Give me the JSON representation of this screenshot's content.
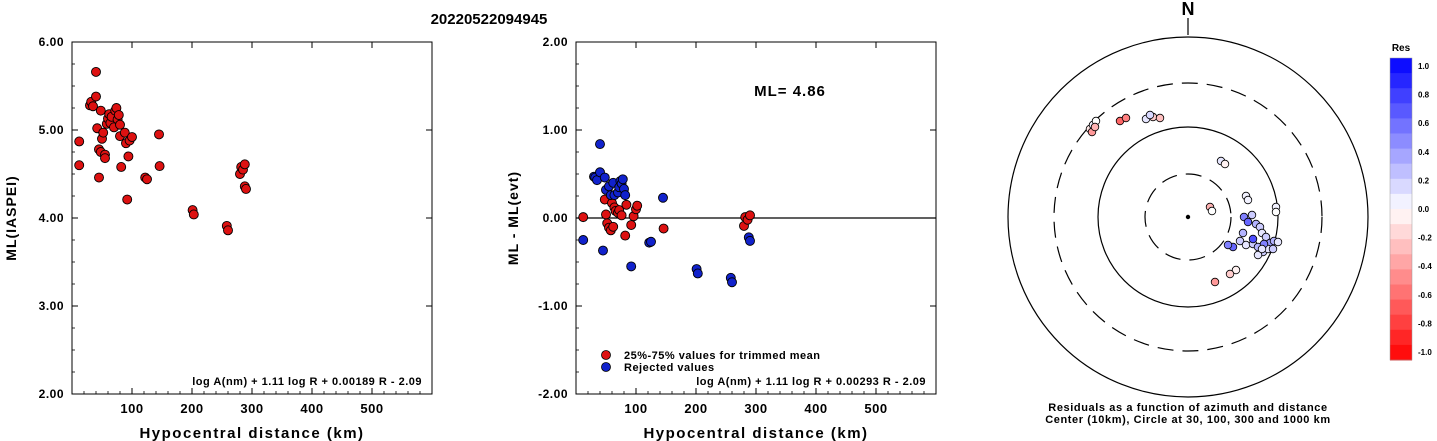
{
  "title": "20220522094945",
  "chart_data": [
    {
      "type": "scatter",
      "ylabel": "ML(IASPEI)",
      "xlabel": "Hypocentral distance (km)",
      "xlim": [
        0,
        600
      ],
      "ylim": [
        2.0,
        6.0
      ],
      "xticks": [
        "100",
        "200",
        "300",
        "400",
        "500"
      ],
      "yticks": [
        "2.00",
        "3.00",
        "4.00",
        "5.00",
        "6.00"
      ],
      "formula": "log A(nm) + 1.11 log R + 0.00189 R - 2.09",
      "color": "#dd1111",
      "points": [
        [
          12,
          4.87
        ],
        [
          12,
          4.6
        ],
        [
          30,
          5.28
        ],
        [
          32,
          5.32
        ],
        [
          35,
          5.27
        ],
        [
          40,
          5.66
        ],
        [
          40,
          5.38
        ],
        [
          42,
          5.02
        ],
        [
          45,
          4.78
        ],
        [
          45,
          4.46
        ],
        [
          48,
          4.75
        ],
        [
          48,
          5.22
        ],
        [
          50,
          4.9
        ],
        [
          52,
          4.97
        ],
        [
          55,
          4.72
        ],
        [
          55,
          4.68
        ],
        [
          58,
          5.07
        ],
        [
          60,
          5.13
        ],
        [
          62,
          5.18
        ],
        [
          64,
          5.08
        ],
        [
          66,
          5.15
        ],
        [
          70,
          5.03
        ],
        [
          72,
          5.22
        ],
        [
          74,
          5.25
        ],
        [
          76,
          5.12
        ],
        [
          78,
          5.17
        ],
        [
          80,
          5.06
        ],
        [
          80,
          4.93
        ],
        [
          82,
          4.58
        ],
        [
          88,
          4.97
        ],
        [
          90,
          4.85
        ],
        [
          92,
          4.21
        ],
        [
          94,
          4.7
        ],
        [
          96,
          4.88
        ],
        [
          100,
          4.92
        ],
        [
          122,
          4.46
        ],
        [
          125,
          4.44
        ],
        [
          145,
          4.95
        ],
        [
          146,
          4.59
        ],
        [
          201,
          4.09
        ],
        [
          203,
          4.04
        ],
        [
          258,
          3.91
        ],
        [
          260,
          3.86
        ],
        [
          280,
          4.5
        ],
        [
          282,
          4.58
        ],
        [
          285,
          4.55
        ],
        [
          288,
          4.61
        ],
        [
          288,
          4.36
        ],
        [
          290,
          4.33
        ]
      ]
    },
    {
      "type": "scatter",
      "ylabel": "ML - ML(evt)",
      "xlabel": "Hypocentral distance (km)",
      "xlim": [
        0,
        600
      ],
      "ylim": [
        -2.0,
        2.0
      ],
      "xticks": [
        "100",
        "200",
        "300",
        "400",
        "500"
      ],
      "yticks": [
        "-2.00",
        "-1.00",
        "0.00",
        "1.00",
        "2.00"
      ],
      "annotation": "ML= 4.86",
      "formula": "log A(nm) + 1.11 log R + 0.00293 R - 2.09",
      "legend": [
        {
          "label": "25%-75% values for trimmed mean",
          "color": "#dd1111"
        },
        {
          "label": "Rejected values",
          "color": "#1122cc"
        }
      ],
      "series": [
        {
          "name": "25%-75% values for trimmed mean",
          "color": "#dd1111",
          "points": [
            [
              12,
              0.01
            ],
            [
              48,
              0.21
            ],
            [
              50,
              0.04
            ],
            [
              52,
              -0.06
            ],
            [
              55,
              -0.11
            ],
            [
              58,
              -0.14
            ],
            [
              60,
              0.17
            ],
            [
              62,
              -0.1
            ],
            [
              64,
              0.12
            ],
            [
              66,
              0.08
            ],
            [
              70,
              0.06
            ],
            [
              72,
              0.09
            ],
            [
              76,
              0.03
            ],
            [
              82,
              -0.2
            ],
            [
              84,
              0.15
            ],
            [
              92,
              -0.08
            ],
            [
              96,
              0.02
            ],
            [
              100,
              0.1
            ],
            [
              102,
              0.14
            ],
            [
              146,
              -0.12
            ],
            [
              280,
              -0.09
            ],
            [
              282,
              0.01
            ],
            [
              286,
              -0.02
            ],
            [
              290,
              0.03
            ]
          ]
        },
        {
          "name": "Rejected values",
          "color": "#1122cc",
          "points": [
            [
              12,
              -0.25
            ],
            [
              30,
              0.47
            ],
            [
              32,
              0.46
            ],
            [
              35,
              0.43
            ],
            [
              40,
              0.84
            ],
            [
              40,
              0.52
            ],
            [
              45,
              -0.37
            ],
            [
              48,
              0.46
            ],
            [
              50,
              0.32
            ],
            [
              55,
              0.36
            ],
            [
              58,
              0.26
            ],
            [
              62,
              0.4
            ],
            [
              64,
              0.26
            ],
            [
              70,
              0.29
            ],
            [
              72,
              0.35
            ],
            [
              74,
              0.42
            ],
            [
              76,
              0.39
            ],
            [
              78,
              0.44
            ],
            [
              80,
              0.33
            ],
            [
              82,
              0.26
            ],
            [
              92,
              -0.55
            ],
            [
              122,
              -0.28
            ],
            [
              125,
              -0.27
            ],
            [
              145,
              0.23
            ],
            [
              201,
              -0.58
            ],
            [
              203,
              -0.63
            ],
            [
              258,
              -0.68
            ],
            [
              260,
              -0.73
            ],
            [
              288,
              -0.22
            ],
            [
              290,
              -0.26
            ]
          ]
        }
      ]
    },
    {
      "type": "polar-scatter",
      "north_label": "N",
      "caption_line1": "Residuals as a function of azimuth and distance",
      "caption_line2": "Center (10km), Circle at 30, 100, 300 and 1000 km",
      "colorbar_title": "Res",
      "colorbar_ticks": [
        "1.0",
        "0.8",
        "0.6",
        "0.4",
        "0.2",
        "0.0",
        "-0.2",
        "-0.4",
        "-0.6",
        "-0.8",
        "-1.0"
      ],
      "colorbar_range": [
        -1.0,
        1.0
      ],
      "points": [
        [
          -98,
          -88,
          -0.1
        ],
        [
          -96,
          -85,
          -0.4
        ],
        [
          -95,
          -92,
          0.05
        ],
        [
          -92,
          -96,
          0.0
        ],
        [
          -93,
          -90,
          -0.3
        ],
        [
          -68,
          -96,
          -0.6
        ],
        [
          -62,
          -99,
          -0.5
        ],
        [
          -42,
          -98,
          0.1
        ],
        [
          -35,
          -100,
          -0.2
        ],
        [
          -28,
          -99,
          -0.25
        ],
        [
          -38,
          -102,
          0.15
        ],
        [
          33,
          -56,
          0.1
        ],
        [
          37,
          -53,
          -0.05
        ],
        [
          58,
          -21,
          0.05
        ],
        [
          60,
          -17,
          0.05
        ],
        [
          22,
          -10,
          -0.3
        ],
        [
          24,
          -6,
          0.0
        ],
        [
          88,
          -10,
          0.05
        ],
        [
          88,
          -5,
          0.0
        ],
        [
          56,
          0,
          0.5
        ],
        [
          60,
          5,
          0.6
        ],
        [
          64,
          -2,
          0.2
        ],
        [
          68,
          7,
          0.3
        ],
        [
          72,
          10,
          0.2
        ],
        [
          74,
          16,
          0.1
        ],
        [
          78,
          20,
          0.2
        ],
        [
          82,
          26,
          0.4
        ],
        [
          86,
          24,
          0.3
        ],
        [
          90,
          25,
          0.1
        ],
        [
          55,
          16,
          0.3
        ],
        [
          45,
          30,
          0.6
        ],
        [
          40,
          28,
          0.5
        ],
        [
          52,
          24,
          0.2
        ],
        [
          58,
          28,
          0.1
        ],
        [
          65,
          27,
          0.2
        ],
        [
          70,
          30,
          0.3
        ],
        [
          75,
          35,
          0.2
        ],
        [
          80,
          32,
          0.1
        ],
        [
          76,
          27,
          0.5
        ],
        [
          85,
          32,
          0.2
        ],
        [
          70,
          38,
          0.1
        ],
        [
          65,
          22,
          0.7
        ],
        [
          74,
          32,
          0.1
        ],
        [
          48,
          53,
          -0.05
        ],
        [
          42,
          57,
          -0.2
        ],
        [
          27,
          65,
          -0.4
        ]
      ]
    }
  ]
}
